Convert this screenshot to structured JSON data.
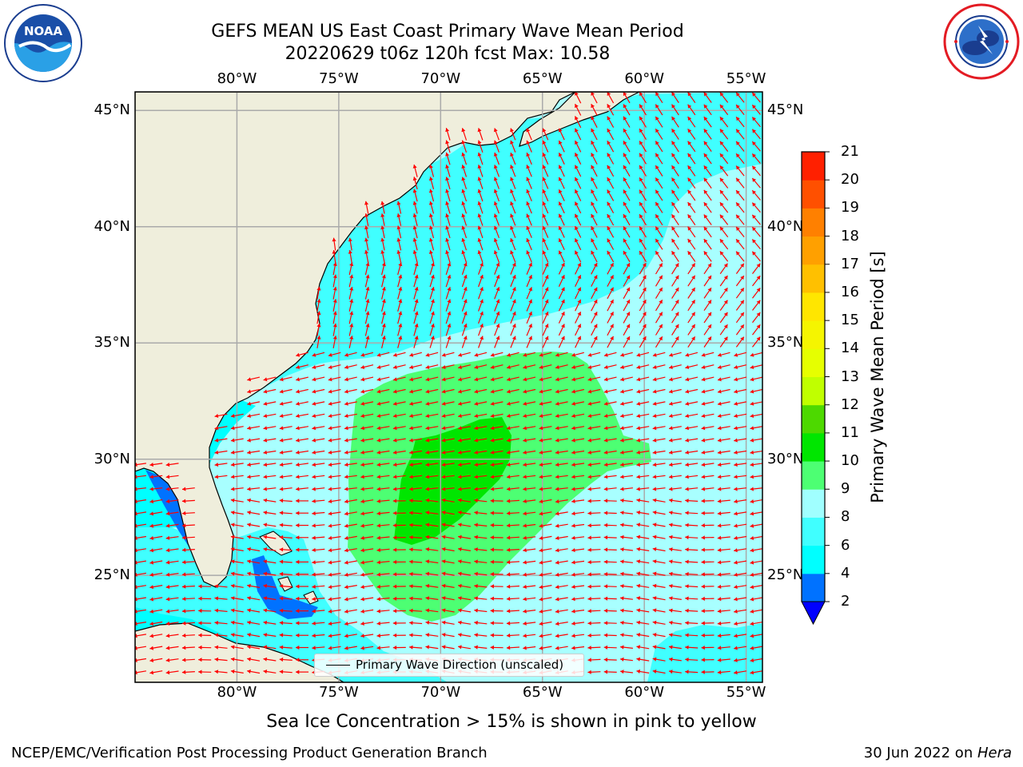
{
  "header": {
    "title_line1": "GEFS MEAN US East Coast Primary Wave Mean Period",
    "title_line2": "20220629 t06z 120h fcst   Max: 10.58"
  },
  "logos": {
    "left": "noaa-logo",
    "right": "nws-logo"
  },
  "map": {
    "lon_labels": [
      "80°W",
      "75°W",
      "70°W",
      "65°W",
      "60°W",
      "55°W"
    ],
    "lat_labels": [
      "45°N",
      "40°N",
      "35°N",
      "30°N",
      "25°N"
    ],
    "lon_values": [
      -80,
      -75,
      -70,
      -65,
      -60,
      -55
    ],
    "lat_values": [
      45,
      40,
      35,
      30,
      25
    ],
    "extent": {
      "lon_min": -85,
      "lon_max": -54.2,
      "lat_min": 20.4,
      "lat_max": 45.8
    },
    "land_color": "#efeedc",
    "grid_color": "#aaaaaa",
    "arrow_color": "#ff0000",
    "legend_label": "Primary Wave Direction (unscaled)"
  },
  "colorbar": {
    "label": "Primary Wave Mean Period [s]",
    "ticks": [
      "2",
      "4",
      "6",
      "8",
      "9",
      "10",
      "11",
      "12",
      "13",
      "14",
      "15",
      "16",
      "17",
      "18",
      "19",
      "20",
      "21"
    ],
    "colors": [
      "#0072ff",
      "#00ffff",
      "#40ffff",
      "#a0ffff",
      "#4dff73",
      "#00e600",
      "#4dd900",
      "#c0ff00",
      "#e6ff00",
      "#f5f500",
      "#ffe600",
      "#ffc000",
      "#ffa000",
      "#ff8000",
      "#ff5000",
      "#ff2000"
    ],
    "extend_color": "#0000ff"
  },
  "notes": {
    "sea_ice": "Sea Ice Concentration > 15% is shown in pink to yellow"
  },
  "footer": {
    "left": "NCEP/EMC/Verification Post Processing Product Generation Branch",
    "date": "30 Jun 2022 on ",
    "system": "Hera"
  },
  "stats": {
    "max_period": 10.58
  }
}
